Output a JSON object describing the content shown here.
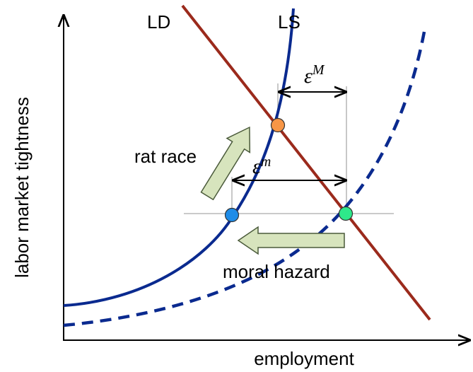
{
  "curves": {
    "ld": "LD",
    "ls": "LS"
  },
  "gaps": {
    "upper": {
      "base": "ε",
      "sup": "M"
    },
    "lower": {
      "base": "ε",
      "sup": "m"
    }
  },
  "arrows": {
    "up": "rat race",
    "left": "moral hazard"
  },
  "axes": {
    "x": "employment",
    "y": "labor market tightness"
  }
}
